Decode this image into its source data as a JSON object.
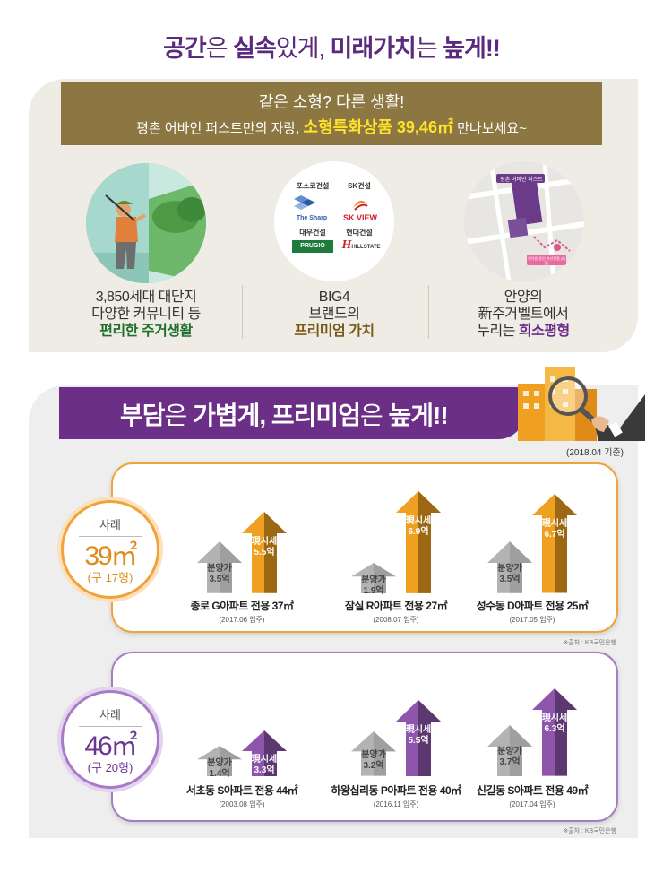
{
  "title": {
    "part1_bold": "공간",
    "part2": "은 ",
    "part3_bold": "실속",
    "part4": "있게, ",
    "part5_bold": "미래가치",
    "part6": "는 ",
    "part7_bold": "높게!!"
  },
  "banner": {
    "line1": "같은 소형? 다른 생활!",
    "line2_prefix": "평촌 어바인 퍼스트만의 자랑, ",
    "line2_highlight": "소형특화상품 39,46㎡",
    "line2_suffix": " 만나보세요~"
  },
  "features": [
    {
      "line1": "3,850세대 대단지",
      "line2": "다양한 커뮤니티 등",
      "line3": "편리한 주거생활"
    },
    {
      "line1": "BIG4",
      "line2": "브랜드의",
      "line3": "프리미엄 가치"
    },
    {
      "line1": "안양의",
      "line2": "新주거벨트에서",
      "line3_prefix": "누리는 ",
      "line3": "희소평형"
    }
  ],
  "brands": {
    "posco": "포스코건설",
    "posco_logo": "The Sharp",
    "sk": "SK건설",
    "sk_logo": "SK VIEW",
    "daewoo": "대우건설",
    "daewoo_logo": "PRUGIO",
    "hyundai": "현대건설",
    "hyundai_logo": "HILLSTATE"
  },
  "map": {
    "label_main": "평촌 어바인 퍼스트",
    "label_station": "인덕원-동탄 복선전철 (예정)"
  },
  "section2": {
    "title_bold1": "부담",
    "title_thin1": "은 ",
    "title_bold2": "가볍게, 프리미엄",
    "title_thin2": "은 ",
    "title_bold3": "높게!!",
    "basis": "(2018.04 기준)"
  },
  "cases": [
    {
      "badge_label": "사례",
      "badge_size": "39㎡",
      "badge_sub": "(구 17형)",
      "items": [
        {
          "name": "종로 G아파트 전용 37㎡",
          "date": "(2017.06 입주)",
          "sale_label": "분양가",
          "sale_value": "3.5억",
          "sale": 3.5,
          "market_label": "現시세",
          "market_value": "5.5억",
          "market": 5.5
        },
        {
          "name": "잠실 R아파트 전용 27㎡",
          "date": "(2008.07 입주)",
          "sale_label": "분양가",
          "sale_value": "1.9억",
          "sale": 1.9,
          "market_label": "現시세",
          "market_value": "6.9억",
          "market": 6.9
        },
        {
          "name": "성수동 D아파트 전용 25㎡",
          "date": "(2017.05 입주)",
          "sale_label": "분양가",
          "sale_value": "3.5억",
          "sale": 3.5,
          "market_label": "現시세",
          "market_value": "6.7억",
          "market": 6.7
        }
      ],
      "source": "※출처 : KB국민은행"
    },
    {
      "badge_label": "사례",
      "badge_size": "46㎡",
      "badge_sub": "(구 20형)",
      "items": [
        {
          "name": "서초동 S아파트 전용 44㎡",
          "date": "(2003.08 입주)",
          "sale_label": "분양가",
          "sale_value": "1.4억",
          "sale": 1.4,
          "market_label": "現시세",
          "market_value": "3.3억",
          "market": 3.3
        },
        {
          "name": "하왕십리동 P아파트 전용 40㎡",
          "date": "(2016.11 입주)",
          "sale_label": "분양가",
          "sale_value": "3.2억",
          "sale": 3.2,
          "market_label": "現시세",
          "market_value": "5.5억",
          "market": 5.5
        },
        {
          "name": "신길동 S아파트 전용 49㎡",
          "date": "(2017.04 입주)",
          "sale_label": "분양가",
          "sale_value": "3.7억",
          "sale": 3.7,
          "market_label": "現시세",
          "market_value": "6.3억",
          "market": 6.3
        }
      ],
      "source": "※출처 : KB국민은행"
    }
  ],
  "colors": {
    "purple": "#6b2f87",
    "orange": "#f0a020",
    "gold": "#8c7742",
    "gray_arrow": "#a9a9a9",
    "highlight": "#ffe22a"
  }
}
